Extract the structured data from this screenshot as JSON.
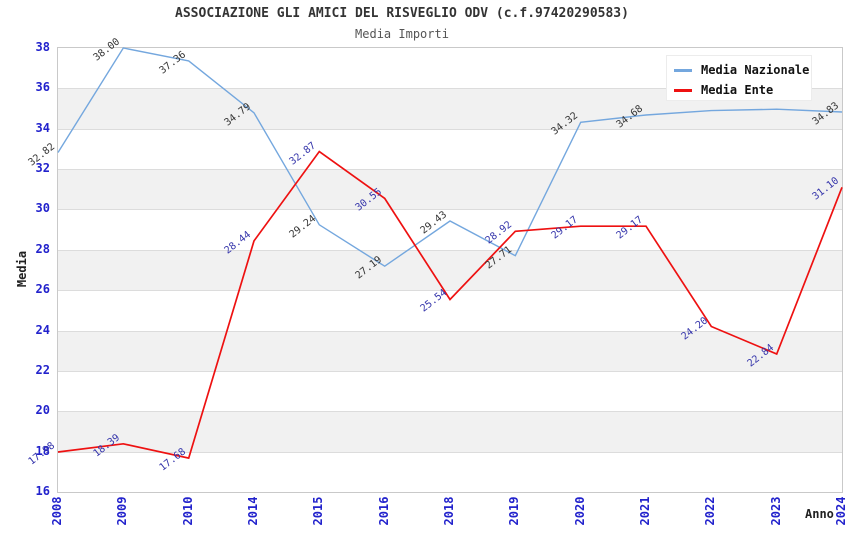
{
  "title": "ASSOCIAZIONE GLI AMICI DEL RISVEGLIO ODV (c.f.97420290583)",
  "subtitle": "Media Importi",
  "colors": {
    "axis_tick_label": "#2222cc",
    "grid_band": "#f1f1f1",
    "grid_line": "#dcdcdc",
    "plot_border": "#c9c9c9",
    "nazionale_line": "#74a7de",
    "ente_line": "#ee1111",
    "nazionale_data_label": "#333333",
    "ente_data_label": "#3333aa"
  },
  "legend": [
    {
      "label": "Media Nazionale",
      "color": "#74a7de"
    },
    {
      "label": "Media Ente",
      "color": "#ee1111"
    }
  ],
  "chart_data": {
    "type": "line",
    "title": "ASSOCIAZIONE GLI AMICI DEL RISVEGLIO ODV (c.f.97420290583)",
    "subtitle": "Media Importi",
    "xlabel": "Anno",
    "ylabel": "Media",
    "ylim": [
      16,
      38
    ],
    "yticks": [
      16,
      18,
      20,
      22,
      24,
      26,
      28,
      30,
      32,
      34,
      36,
      38
    ],
    "grid": "horizontal gridlines every 2 units with alternating gray bands",
    "legend_position": "top-right",
    "categories": [
      "2008",
      "2009",
      "2010",
      "2014",
      "2015",
      "2016",
      "2018",
      "2019",
      "2020",
      "2021",
      "2022",
      "2023",
      "2024"
    ],
    "series": [
      {
        "name": "Media Nazionale",
        "color": "#74a7de",
        "label_color": "#333333",
        "values": [
          32.82,
          38.0,
          37.36,
          34.79,
          29.24,
          27.19,
          29.43,
          27.71,
          34.32,
          34.68,
          34.9,
          34.97,
          34.83
        ],
        "labels": [
          "32.82",
          "38.00",
          "37.36",
          "34.79",
          "29.24",
          "27.19",
          "29.43",
          "27.71",
          "34.32",
          "34.68",
          "",
          "",
          "34.83"
        ],
        "note": "2022 and 2023 point labels are hidden behind the legend box; those two values estimated from line position"
      },
      {
        "name": "Media Ente",
        "color": "#ee1111",
        "label_color": "#3333aa",
        "values": [
          17.98,
          18.39,
          17.68,
          28.44,
          32.87,
          30.55,
          25.54,
          28.92,
          29.17,
          29.17,
          24.2,
          22.84,
          31.1
        ],
        "labels": [
          "17.98",
          "18.39",
          "17.68",
          "28.44",
          "32.87",
          "30.55",
          "25.54",
          "28.92",
          "29.17",
          "29.17",
          "24.20",
          "22.84",
          "31.10"
        ]
      }
    ]
  }
}
